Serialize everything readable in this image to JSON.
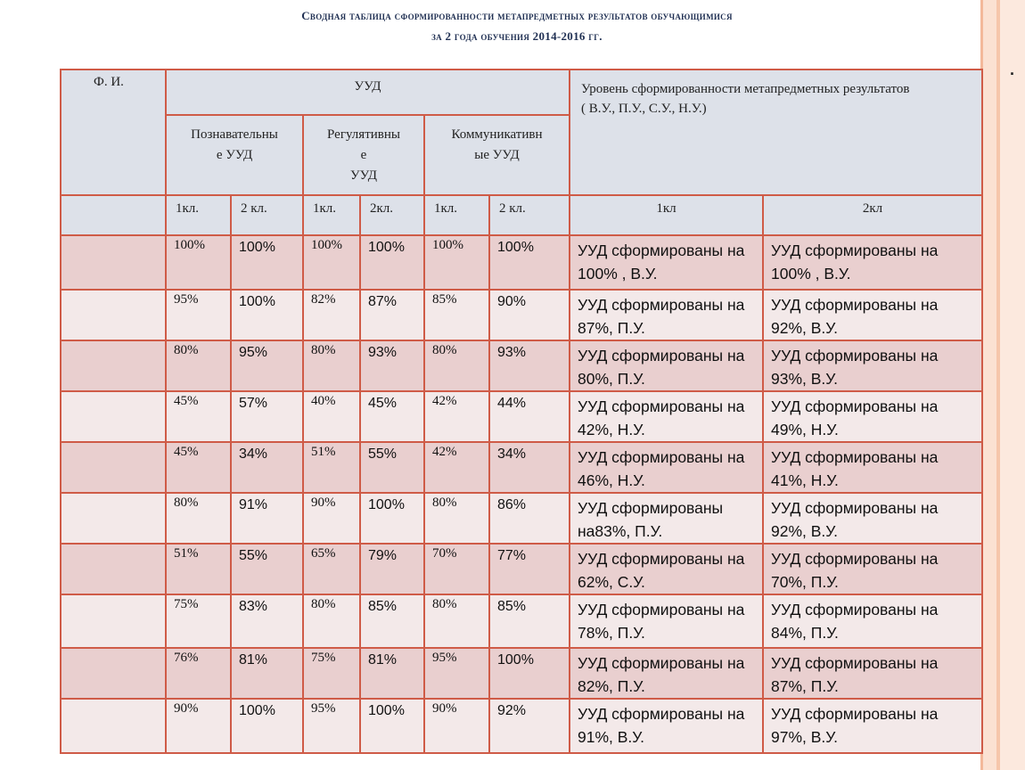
{
  "title": {
    "line1": "Сводная таблица сформированности метапредметных результатов обучающимися",
    "line2": "за 2 года обучения 2014-2016 гг."
  },
  "side_mark": ".",
  "header": {
    "fio": "Ф. И.",
    "uud": "УУД",
    "level": "Уровень сформированности метапредметных результатов",
    "level_note": "( В.У., П.У., С.У., Н.У.)",
    "groups": [
      "Познавательные УУД",
      "Регулятивные УУД",
      "Коммуникативные УУД"
    ],
    "group_lines": [
      [
        "Познавательны",
        "е УУД"
      ],
      [
        "Регулятивны",
        "е",
        "УУД"
      ],
      [
        "Коммуникативн",
        "ые УУД"
      ]
    ],
    "grade_labels": [
      "1кл.",
      "2 кл.",
      "1кл.",
      "2кл.",
      "1кл.",
      "2 кл."
    ],
    "level_grades": [
      "1кл",
      "2кл"
    ]
  },
  "rows": [
    {
      "fio": "",
      "vals": [
        "100%",
        "100%",
        "100%",
        "100%",
        "100%",
        "100%"
      ],
      "lvl1": "УУД сформированы на  100% , В.У.",
      "lvl2": "УУД сформированы на 100% , В.У."
    },
    {
      "fio": "",
      "vals": [
        "95%",
        "100%",
        "82%",
        "87%",
        "85%",
        "90%"
      ],
      "lvl1": "УУД сформированы на 87%, П.У.",
      "lvl2": "УУД сформированы на 92%, В.У."
    },
    {
      "fio": "",
      "vals": [
        "80%",
        "95%",
        "80%",
        "93%",
        "80%",
        "93%"
      ],
      "lvl1": "УУД сформированы на 80%, П.У.",
      "lvl2": "УУД сформированы на 93%, В.У."
    },
    {
      "fio": "",
      "vals": [
        "45%",
        "57%",
        "40%",
        "45%",
        "42%",
        "44%"
      ],
      "lvl1": "УУД сформированы на 42%, Н.У.",
      "lvl2": "УУД сформированы на 49%, Н.У."
    },
    {
      "fio": "",
      "vals": [
        "45%",
        "34%",
        "51%",
        "55%",
        "42%",
        "34%"
      ],
      "lvl1": "УУД сформированы на 46%, Н.У.",
      "lvl2": "УУД сформированы на 41%, Н.У."
    },
    {
      "fio": "",
      "vals": [
        "80%",
        "91%",
        "90%",
        "100%",
        "80%",
        "86%"
      ],
      "lvl1": "УУД сформированы на83%, П.У.",
      "lvl2": "УУД сформированы на 92%, В.У."
    },
    {
      "fio": "",
      "vals": [
        "51%",
        "55%",
        "65%",
        "79%",
        "70%",
        "77%"
      ],
      "lvl1": "УУД сформированы на 62%, С.У.",
      "lvl2": "УУД сформированы на 70%, П.У."
    },
    {
      "fio": "",
      "vals": [
        "75%",
        "83%",
        "80%",
        "85%",
        "80%",
        "85%"
      ],
      "lvl1": "УУД сформированы на 78%, П.У.",
      "lvl2": "УУД сформированы на 84%, П.У."
    },
    {
      "fio": "",
      "vals": [
        "76%",
        "81%",
        "75%",
        "81%",
        "95%",
        "100%"
      ],
      "lvl1": "УУД сформированы на 82%, П.У.",
      "lvl2": "УУД сформированы на 87%, П.У."
    },
    {
      "fio": "",
      "vals": [
        "90%",
        "100%",
        "95%",
        "100%",
        "90%",
        "92%"
      ],
      "lvl1": "УУД сформированы на 91%, В.У.",
      "lvl2": "УУД сформированы на 97%, В.У."
    }
  ],
  "colors": {
    "border": "#cf5b47",
    "header_bg": "#dde1e9",
    "row_dark": "#e9cfcf",
    "row_light": "#f3e9e9",
    "title": "#1f2f52"
  }
}
